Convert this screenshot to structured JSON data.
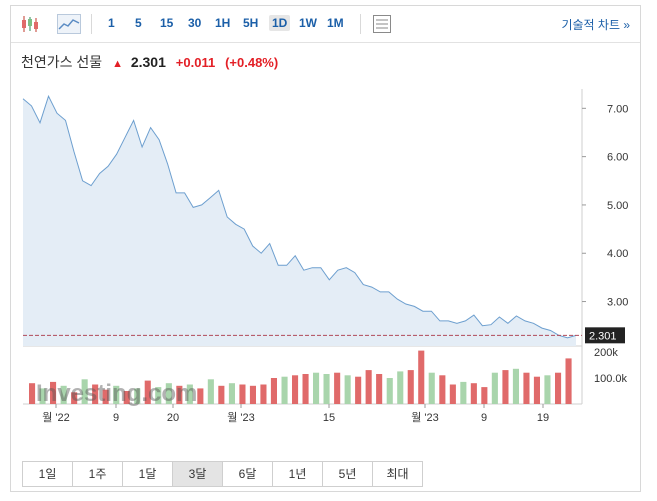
{
  "toolbar": {
    "periods": [
      "1",
      "5",
      "15",
      "30",
      "1H",
      "5H",
      "1D",
      "1W",
      "1M"
    ],
    "active_period": "1D",
    "technical_chart_label": "기술적 차트 »"
  },
  "quote": {
    "name": "천연가스 선물",
    "direction_icon": "up-arrow-icon",
    "price": "2.301",
    "change": "+0.011",
    "change_pct": "(+0.48%)"
  },
  "range_buttons": [
    "1일",
    "1주",
    "1달",
    "3달",
    "6달",
    "1년",
    "5년",
    "최대"
  ],
  "active_range": "3달",
  "watermark": "Investing.com",
  "colors": {
    "line": "#6d9fcf",
    "area_fill": "#e4edf6",
    "up_volume": "#a9d5ac",
    "down_volume": "#e06a6a",
    "last_price_tag": "#222222",
    "accent_blue": "#1b5fa8",
    "change_red": "#e31f26"
  },
  "chart_data": {
    "type": "line",
    "price_axis": {
      "ticks": [
        "7.00",
        "6.00",
        "5.00",
        "4.00",
        "3.00"
      ],
      "ylim": [
        2.08,
        7.4
      ]
    },
    "last_price_label": "2.301",
    "x_tick_labels": [
      "월 '22",
      "9",
      "20",
      "월 '23",
      "15",
      "월 '23",
      "9",
      "19"
    ],
    "price_series": [
      7.2,
      7.05,
      6.7,
      7.25,
      6.9,
      6.75,
      6.1,
      5.5,
      5.4,
      5.65,
      5.8,
      6.05,
      6.4,
      6.75,
      6.2,
      6.6,
      6.35,
      5.85,
      5.25,
      5.25,
      4.95,
      5.0,
      5.15,
      5.3,
      4.75,
      4.6,
      4.5,
      4.15,
      4.0,
      4.2,
      3.75,
      3.75,
      3.95,
      3.65,
      3.7,
      3.7,
      3.45,
      3.65,
      3.7,
      3.6,
      3.35,
      3.3,
      3.2,
      3.2,
      3.05,
      2.95,
      2.9,
      2.8,
      2.8,
      2.6,
      2.6,
      2.55,
      2.6,
      2.72,
      2.5,
      2.52,
      2.68,
      2.55,
      2.7,
      2.6,
      2.55,
      2.45,
      2.4,
      2.3,
      2.25,
      2.3
    ],
    "volume_axis": {
      "ticks": [
        "200k",
        "100.0k"
      ],
      "ylim": [
        0,
        215
      ]
    },
    "volume_series": [
      {
        "v": 80,
        "up": false
      },
      {
        "v": 60,
        "up": true
      },
      {
        "v": 85,
        "up": false
      },
      {
        "v": 70,
        "up": true
      },
      {
        "v": 45,
        "up": false
      },
      {
        "v": 95,
        "up": true
      },
      {
        "v": 75,
        "up": false
      },
      {
        "v": 55,
        "up": false
      },
      {
        "v": 70,
        "up": true
      },
      {
        "v": 50,
        "up": false
      },
      {
        "v": 60,
        "up": true
      },
      {
        "v": 90,
        "up": false
      },
      {
        "v": 65,
        "up": true
      },
      {
        "v": 80,
        "up": true
      },
      {
        "v": 70,
        "up": false
      },
      {
        "v": 75,
        "up": true
      },
      {
        "v": 60,
        "up": false
      },
      {
        "v": 95,
        "up": true
      },
      {
        "v": 70,
        "up": false
      },
      {
        "v": 80,
        "up": true
      },
      {
        "v": 75,
        "up": false
      },
      {
        "v": 70,
        "up": false
      },
      {
        "v": 75,
        "up": false
      },
      {
        "v": 100,
        "up": false
      },
      {
        "v": 105,
        "up": true
      },
      {
        "v": 110,
        "up": false
      },
      {
        "v": 115,
        "up": false
      },
      {
        "v": 120,
        "up": true
      },
      {
        "v": 115,
        "up": true
      },
      {
        "v": 120,
        "up": false
      },
      {
        "v": 110,
        "up": true
      },
      {
        "v": 105,
        "up": false
      },
      {
        "v": 130,
        "up": false
      },
      {
        "v": 115,
        "up": false
      },
      {
        "v": 100,
        "up": true
      },
      {
        "v": 125,
        "up": true
      },
      {
        "v": 130,
        "up": false
      },
      {
        "v": 205,
        "up": false
      },
      {
        "v": 120,
        "up": true
      },
      {
        "v": 110,
        "up": false
      },
      {
        "v": 75,
        "up": false
      },
      {
        "v": 85,
        "up": true
      },
      {
        "v": 80,
        "up": false
      },
      {
        "v": 65,
        "up": false
      },
      {
        "v": 120,
        "up": true
      },
      {
        "v": 130,
        "up": false
      },
      {
        "v": 135,
        "up": true
      },
      {
        "v": 120,
        "up": false
      },
      {
        "v": 105,
        "up": false
      },
      {
        "v": 110,
        "up": true
      },
      {
        "v": 120,
        "up": false
      },
      {
        "v": 175,
        "up": false
      }
    ]
  }
}
